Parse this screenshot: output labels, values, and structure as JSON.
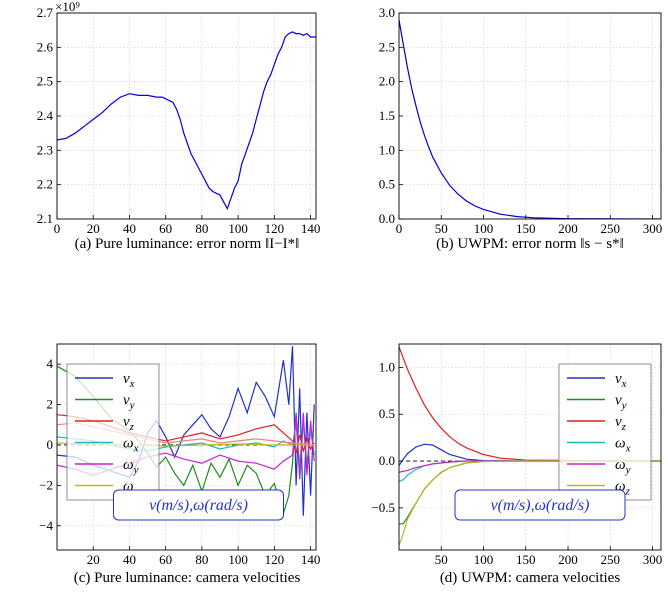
{
  "chart_data": [
    {
      "type": "line",
      "caption": "(a) Pure luminance: error norm ‖I−I*‖",
      "offset_text": "×10⁹",
      "xlim": [
        0,
        143
      ],
      "ylim": [
        2.1,
        2.7
      ],
      "xticks": [
        0,
        20,
        40,
        60,
        80,
        100,
        120,
        140
      ],
      "yticks": [
        2.1,
        2.2,
        2.3,
        2.4,
        2.5,
        2.6,
        2.7
      ],
      "ytick_labels": [
        "2.1",
        "2.2",
        "2.3",
        "2.4",
        "2.5",
        "2.6",
        "2.7"
      ],
      "grid": true,
      "series": [
        {
          "color": "#0000dd",
          "x": [
            0,
            5,
            10,
            15,
            20,
            25,
            30,
            35,
            40,
            45,
            50,
            55,
            58,
            60,
            62,
            64,
            66,
            68,
            70,
            72,
            74,
            76,
            78,
            80,
            82,
            84,
            86,
            88,
            90,
            92,
            94,
            96,
            98,
            100,
            102,
            104,
            106,
            108,
            110,
            112,
            114,
            116,
            118,
            120,
            122,
            124,
            126,
            128,
            130,
            132,
            134,
            136,
            138,
            140,
            142,
            143
          ],
          "y": [
            2.33,
            2.335,
            2.35,
            2.37,
            2.39,
            2.41,
            2.435,
            2.455,
            2.465,
            2.46,
            2.46,
            2.455,
            2.455,
            2.45,
            2.445,
            2.44,
            2.42,
            2.39,
            2.35,
            2.32,
            2.29,
            2.27,
            2.25,
            2.23,
            2.21,
            2.19,
            2.18,
            2.175,
            2.17,
            2.15,
            2.13,
            2.16,
            2.19,
            2.21,
            2.26,
            2.29,
            2.32,
            2.35,
            2.39,
            2.43,
            2.47,
            2.5,
            2.52,
            2.55,
            2.58,
            2.6,
            2.63,
            2.64,
            2.645,
            2.64,
            2.64,
            2.635,
            2.64,
            2.63,
            2.63,
            2.63
          ]
        }
      ]
    },
    {
      "type": "line",
      "caption": "(b) UWPM: error norm ‖s − s*‖",
      "xlim": [
        0,
        310
      ],
      "ylim": [
        0.0,
        3.0
      ],
      "xticks": [
        0,
        50,
        100,
        150,
        200,
        250,
        300
      ],
      "yticks": [
        0.0,
        0.5,
        1.0,
        1.5,
        2.0,
        2.5,
        3.0
      ],
      "ytick_labels": [
        "0.0",
        "0.5",
        "1.0",
        "1.5",
        "2.0",
        "2.5",
        "3.0"
      ],
      "grid": true,
      "series": [
        {
          "color": "#0000dd",
          "x": [
            0,
            5,
            10,
            15,
            20,
            25,
            30,
            35,
            40,
            50,
            60,
            70,
            80,
            90,
            100,
            120,
            140,
            160,
            200,
            250,
            310
          ],
          "y": [
            2.9,
            2.55,
            2.2,
            1.9,
            1.65,
            1.42,
            1.22,
            1.05,
            0.9,
            0.67,
            0.49,
            0.36,
            0.26,
            0.19,
            0.14,
            0.07,
            0.035,
            0.018,
            0.005,
            0.001,
            0.0
          ]
        }
      ]
    },
    {
      "type": "line",
      "caption": "(c) Pure luminance: camera velocities",
      "xlim": [
        0,
        143
      ],
      "ylim": [
        -5.2,
        5.0
      ],
      "xticks": [
        20,
        40,
        60,
        80,
        100,
        120,
        140
      ],
      "yticks": [
        -4,
        -2,
        0,
        2,
        4
      ],
      "ytick_labels": [
        "−4",
        "−2",
        "0",
        "2",
        "4"
      ],
      "grid": true,
      "legend": [
        "v_x",
        "v_y",
        "v_z",
        "ω_x",
        "ω_y",
        "ω_z"
      ],
      "legend_position": "upper-left",
      "annotation": "v(m/s),ω(rad/s)",
      "series": [
        {
          "name": "v_x",
          "color": "#2030cc",
          "x": [
            0,
            10,
            20,
            30,
            40,
            45,
            50,
            55,
            60,
            65,
            70,
            75,
            80,
            85,
            90,
            95,
            100,
            105,
            110,
            115,
            120,
            125,
            128,
            130,
            132,
            134,
            136,
            138,
            140,
            142
          ],
          "y": [
            -0.5,
            -0.6,
            -1.0,
            -1.3,
            -1.6,
            -0.8,
            0.6,
            1.2,
            0.4,
            -0.6,
            0.5,
            1.0,
            1.5,
            0.8,
            0.4,
            1.4,
            2.8,
            1.6,
            3.1,
            2.4,
            1.4,
            4.2,
            2.0,
            4.9,
            -2.0,
            2.8,
            -3.5,
            1.6,
            -2.5,
            2.0
          ]
        },
        {
          "name": "v_y",
          "color": "#208a20",
          "x": [
            0,
            10,
            20,
            30,
            40,
            45,
            50,
            55,
            60,
            65,
            70,
            75,
            80,
            85,
            90,
            95,
            100,
            105,
            110,
            115,
            120,
            125,
            128,
            130,
            132,
            134,
            136,
            138,
            140,
            142
          ],
          "y": [
            3.9,
            3.4,
            2.4,
            1.3,
            0.7,
            0.2,
            -0.4,
            -1.1,
            -0.6,
            -1.4,
            -2.0,
            -1.0,
            -2.3,
            -0.9,
            -1.6,
            -0.7,
            -2.0,
            -1.0,
            -1.4,
            -2.5,
            -1.9,
            -3.4,
            -2.5,
            -0.9,
            1.6,
            -1.7,
            1.2,
            -1.0,
            0.8,
            -0.5
          ]
        },
        {
          "name": "v_z",
          "color": "#dd2020",
          "x": [
            0,
            10,
            20,
            30,
            40,
            50,
            60,
            70,
            80,
            90,
            100,
            110,
            120,
            125,
            130,
            132,
            134,
            136,
            138,
            140,
            142
          ],
          "y": [
            1.5,
            1.4,
            1.2,
            0.9,
            0.6,
            0.4,
            0.2,
            0.4,
            0.6,
            0.3,
            0.5,
            0.8,
            1.0,
            0.6,
            0.2,
            -0.4,
            0.5,
            -0.3,
            0.3,
            -0.2,
            0.1
          ]
        },
        {
          "name": "ω_x",
          "color": "#20b8b8",
          "x": [
            0,
            10,
            20,
            30,
            40,
            50,
            60,
            70,
            80,
            90,
            100,
            110,
            120,
            125,
            130,
            132,
            134,
            136,
            138,
            140,
            142
          ],
          "y": [
            0.4,
            0.3,
            0.2,
            0.0,
            -0.2,
            -0.3,
            -0.1,
            0.0,
            0.1,
            -0.2,
            0.0,
            0.1,
            -0.1,
            0.2,
            0.0,
            1.0,
            -1.0,
            1.2,
            -1.2,
            0.8,
            -0.5
          ]
        },
        {
          "name": "ω_y",
          "color": "#cc20cc",
          "x": [
            0,
            10,
            20,
            30,
            40,
            50,
            60,
            70,
            80,
            90,
            100,
            110,
            120,
            125,
            130,
            132,
            134,
            136,
            138,
            140,
            142
          ],
          "y": [
            -1.0,
            -1.2,
            -1.5,
            -1.2,
            -0.9,
            -0.6,
            -0.4,
            -0.7,
            -0.9,
            -0.5,
            -0.8,
            -0.9,
            -1.2,
            -0.8,
            -0.5,
            1.5,
            -1.6,
            1.6,
            -1.5,
            1.2,
            -0.8
          ]
        },
        {
          "name": "ω_z",
          "color": "#b8b820",
          "x": [
            0,
            20,
            40,
            60,
            80,
            100,
            120,
            140,
            142
          ],
          "y": [
            0.1,
            0.05,
            0.0,
            -0.05,
            0.0,
            0.05,
            0.0,
            0.0,
            0.0
          ]
        },
        {
          "name": "pink_trace",
          "color": "#f08080",
          "x": [
            0,
            10,
            20,
            30,
            40,
            50,
            60,
            70,
            80,
            90,
            100,
            110,
            120,
            130,
            142
          ],
          "y": [
            1.0,
            1.1,
            0.9,
            0.7,
            0.5,
            0.3,
            0.1,
            0.2,
            0.3,
            0.1,
            0.2,
            0.3,
            0.2,
            0.1,
            0.0
          ]
        }
      ]
    },
    {
      "type": "line",
      "caption": "(d) UWPM: camera velocities",
      "xlim": [
        0,
        310
      ],
      "ylim": [
        -0.95,
        1.25
      ],
      "xticks": [
        50,
        100,
        150,
        200,
        250,
        300
      ],
      "yticks": [
        -0.5,
        0.0,
        0.5,
        1.0
      ],
      "ytick_labels": [
        "−0.5",
        "0.0",
        "0.5",
        "1.0"
      ],
      "grid": true,
      "legend": [
        "v_x",
        "v_y",
        "v_z",
        "ω_x",
        "ω_y",
        "ω_z"
      ],
      "legend_position": "upper-right",
      "annotation": "v(m/s),ω(rad/s)",
      "series": [
        {
          "name": "v_x",
          "color": "#2030cc",
          "x": [
            0,
            5,
            10,
            20,
            30,
            40,
            50,
            60,
            80,
            100,
            150,
            310
          ],
          "y": [
            -0.05,
            0.02,
            0.08,
            0.15,
            0.18,
            0.17,
            0.12,
            0.07,
            0.02,
            0.005,
            0.0,
            0.0
          ]
        },
        {
          "name": "v_y",
          "color": "#208a20",
          "x": [
            0,
            5,
            10,
            20,
            30,
            40,
            50,
            60,
            80,
            100,
            150,
            310
          ],
          "y": [
            -0.67,
            -0.67,
            -0.6,
            -0.45,
            -0.3,
            -0.2,
            -0.12,
            -0.07,
            -0.02,
            -0.005,
            0.0,
            0.0
          ]
        },
        {
          "name": "v_z",
          "color": "#dd2020",
          "x": [
            0,
            10,
            20,
            30,
            40,
            50,
            60,
            70,
            80,
            100,
            120,
            150,
            310
          ],
          "y": [
            1.22,
            0.98,
            0.78,
            0.6,
            0.46,
            0.35,
            0.26,
            0.19,
            0.14,
            0.07,
            0.03,
            0.01,
            0.0
          ]
        },
        {
          "name": "ω_x",
          "color": "#20b8b8",
          "x": [
            0,
            5,
            10,
            20,
            30,
            40,
            60,
            80,
            100,
            150,
            310
          ],
          "y": [
            -0.22,
            -0.2,
            -0.15,
            -0.09,
            -0.05,
            -0.03,
            -0.01,
            0.0,
            0.0,
            0.0,
            0.0
          ]
        },
        {
          "name": "ω_y",
          "color": "#cc20cc",
          "x": [
            0,
            10,
            20,
            30,
            40,
            60,
            80,
            100,
            150,
            310
          ],
          "y": [
            -0.12,
            -0.1,
            -0.07,
            -0.05,
            -0.03,
            -0.01,
            0.0,
            0.0,
            0.0,
            0.0
          ]
        },
        {
          "name": "ω_z",
          "color": "#b8b820",
          "x": [
            0,
            5,
            10,
            20,
            30,
            40,
            50,
            60,
            80,
            100,
            150,
            310
          ],
          "y": [
            -0.9,
            -0.78,
            -0.62,
            -0.45,
            -0.3,
            -0.2,
            -0.12,
            -0.07,
            -0.02,
            -0.005,
            0.0,
            0.0
          ]
        }
      ]
    }
  ]
}
